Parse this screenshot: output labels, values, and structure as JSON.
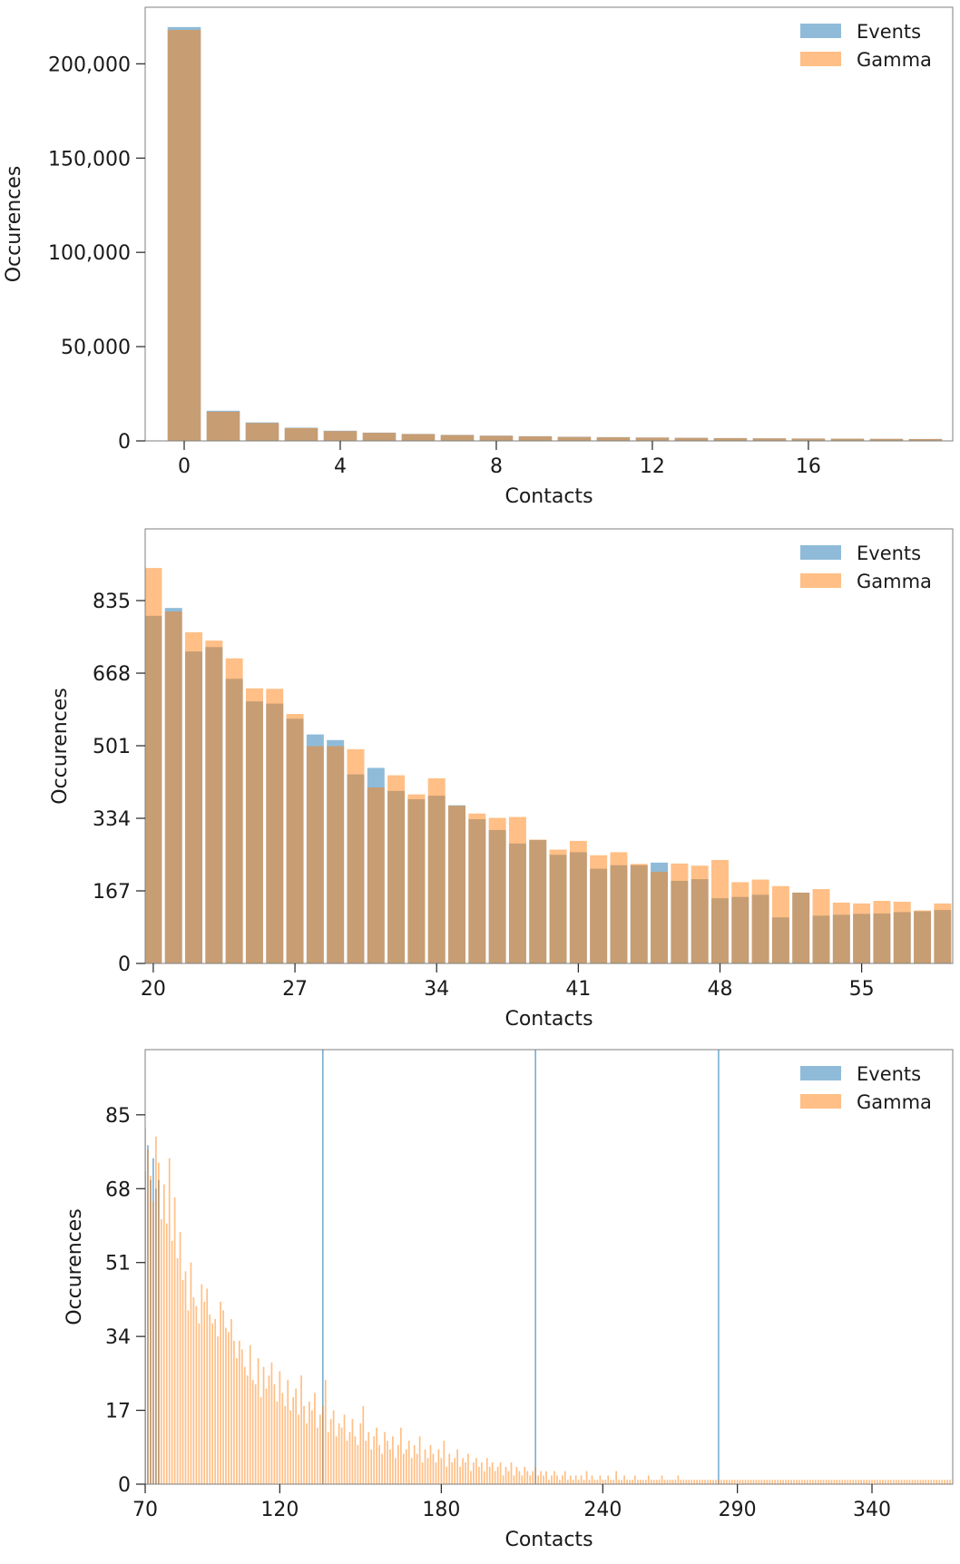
{
  "colors": {
    "events": "#1f77b4",
    "gamma": "#ff7f0e",
    "frame": "#7f7f7f"
  },
  "chart_data": [
    {
      "type": "bar",
      "xlabel": "Contacts",
      "ylabel": "Occurences",
      "xlim": [
        -1,
        19.7
      ],
      "ylim": [
        0,
        230000
      ],
      "xticks": [
        0,
        4,
        8,
        12,
        16
      ],
      "yticks": [
        0,
        50000,
        100000,
        150000,
        200000
      ],
      "ytick_labels": [
        "0",
        "50,000",
        "100,000",
        "150,000",
        "200,000"
      ],
      "bar_width": 0.85,
      "legend": "top-right",
      "x": [
        0,
        1,
        2,
        3,
        4,
        5,
        6,
        7,
        8,
        9,
        10,
        11,
        12,
        13,
        14,
        15,
        16,
        17,
        18,
        19
      ],
      "series": [
        {
          "name": "Events",
          "values": [
            219500,
            16000,
            9800,
            7000,
            5400,
            4400,
            3700,
            3200,
            2800,
            2500,
            2200,
            2000,
            1800,
            1650,
            1500,
            1380,
            1270,
            1180,
            1100,
            1020
          ]
        },
        {
          "name": "Gamma",
          "values": [
            218000,
            15500,
            9500,
            6800,
            5200,
            4300,
            3600,
            3100,
            2700,
            2400,
            2100,
            1900,
            1750,
            1600,
            1450,
            1330,
            1230,
            1140,
            1060,
            990
          ]
        }
      ]
    },
    {
      "type": "bar",
      "xlabel": "Contacts",
      "ylabel": "Occurences",
      "xlim": [
        19.6,
        59.5
      ],
      "ylim": [
        0,
        1000
      ],
      "xticks": [
        20,
        27,
        34,
        41,
        48,
        55
      ],
      "yticks": [
        0,
        167,
        334,
        501,
        668,
        835
      ],
      "ytick_labels": [
        "0",
        "167",
        "334",
        "501",
        "668",
        "835"
      ],
      "bar_width": 0.85,
      "legend": "top-right",
      "x": [
        20,
        21,
        22,
        23,
        24,
        25,
        26,
        27,
        28,
        29,
        30,
        31,
        32,
        33,
        34,
        35,
        36,
        37,
        38,
        39,
        40,
        41,
        42,
        43,
        44,
        45,
        46,
        47,
        48,
        49,
        50,
        51,
        52,
        53,
        54,
        55,
        56,
        57,
        58,
        59
      ],
      "series": [
        {
          "name": "Events",
          "values": [
            800,
            818,
            718,
            728,
            655,
            603,
            598,
            563,
            527,
            514,
            435,
            450,
            397,
            378,
            386,
            364,
            332,
            307,
            276,
            284,
            250,
            256,
            218,
            226,
            226,
            232,
            190,
            194,
            150,
            153,
            158,
            106,
            163,
            110,
            112,
            114,
            115,
            118,
            120,
            123
          ]
        },
        {
          "name": "Gamma",
          "values": [
            910,
            810,
            762,
            743,
            702,
            633,
            632,
            574,
            500,
            500,
            493,
            405,
            433,
            389,
            426,
            363,
            345,
            335,
            337,
            285,
            262,
            282,
            249,
            256,
            229,
            211,
            230,
            225,
            238,
            187,
            193,
            178,
            163,
            171,
            140,
            138,
            144,
            142,
            122,
            138
          ]
        }
      ]
    },
    {
      "type": "bar",
      "xlabel": "Contacts",
      "ylabel": "Occurences",
      "xlim": [
        70,
        370
      ],
      "ylim": [
        0,
        100
      ],
      "xticks": [
        70,
        120,
        180,
        240,
        290,
        340
      ],
      "yticks": [
        0,
        17,
        34,
        51,
        68,
        85
      ],
      "ytick_labels": [
        "0",
        "17",
        "34",
        "51",
        "68",
        "85"
      ],
      "legend": "top-right",
      "series": [
        {
          "name": "Events",
          "x": [
            70,
            71,
            72,
            73,
            74,
            75,
            136,
            215,
            283
          ],
          "values": [
            72,
            78,
            70,
            75,
            68,
            70,
            100,
            100,
            100
          ]
        },
        {
          "name": "Gamma",
          "x_start": 70,
          "values": [
            82,
            77,
            71,
            65,
            80,
            74,
            61,
            69,
            60,
            75,
            56,
            66,
            52,
            58,
            47,
            49,
            40,
            51,
            43,
            41,
            37,
            46,
            42,
            45,
            39,
            37,
            38,
            34,
            42,
            40,
            36,
            35,
            38,
            33,
            29,
            33,
            31,
            27,
            25,
            32,
            24,
            23,
            29,
            20,
            27,
            22,
            25,
            28,
            23,
            19,
            26,
            21,
            18,
            24,
            17,
            20,
            22,
            16,
            25,
            18,
            14,
            19,
            17,
            21,
            13,
            16,
            18,
            24,
            12,
            15,
            17,
            11,
            14,
            13,
            16,
            10,
            12,
            15,
            11,
            9,
            14,
            18,
            10,
            12,
            8,
            11,
            13,
            9,
            7,
            12,
            10,
            8,
            11,
            6,
            9,
            13,
            7,
            8,
            10,
            6,
            9,
            7,
            11,
            5,
            8,
            6,
            9,
            7,
            5,
            8,
            6,
            10,
            4,
            7,
            5,
            6,
            8,
            4,
            6,
            5,
            7,
            3,
            5,
            6,
            4,
            5,
            3,
            6,
            4,
            5,
            3,
            4,
            5,
            2,
            4,
            3,
            5,
            2,
            4,
            3,
            2,
            4,
            3,
            2,
            3,
            4,
            2,
            3,
            2,
            3,
            1,
            2,
            3,
            2,
            1,
            2,
            3,
            1,
            2,
            1,
            2,
            1,
            2,
            1,
            3,
            1,
            2,
            1,
            1,
            2,
            1,
            1,
            2,
            1,
            1,
            3,
            1,
            1,
            2,
            1,
            1,
            1,
            2,
            1,
            1,
            1,
            1,
            2,
            1,
            1,
            1,
            1,
            2,
            1,
            1,
            1,
            1,
            1,
            2,
            1,
            1,
            1,
            1,
            1,
            1,
            1,
            1,
            1,
            1,
            1,
            1,
            1,
            1,
            1,
            1,
            1,
            1,
            1,
            1,
            1,
            1,
            1,
            1,
            1,
            1,
            1,
            1,
            1,
            1,
            1,
            1,
            1,
            1,
            1,
            1,
            1,
            1,
            1,
            1,
            1,
            1,
            1,
            1,
            1,
            1,
            1,
            1,
            1,
            1,
            1,
            1,
            1,
            1,
            1,
            1,
            1,
            1,
            1,
            1,
            1,
            1,
            1,
            1,
            1,
            1,
            1,
            1,
            1,
            1,
            1,
            1,
            1,
            1,
            1,
            1,
            1,
            1,
            1,
            1,
            1,
            1,
            1,
            1,
            1,
            1,
            1,
            1,
            1,
            1,
            1,
            1,
            1,
            1,
            1,
            1,
            1,
            1,
            1,
            1,
            1
          ]
        }
      ]
    }
  ]
}
